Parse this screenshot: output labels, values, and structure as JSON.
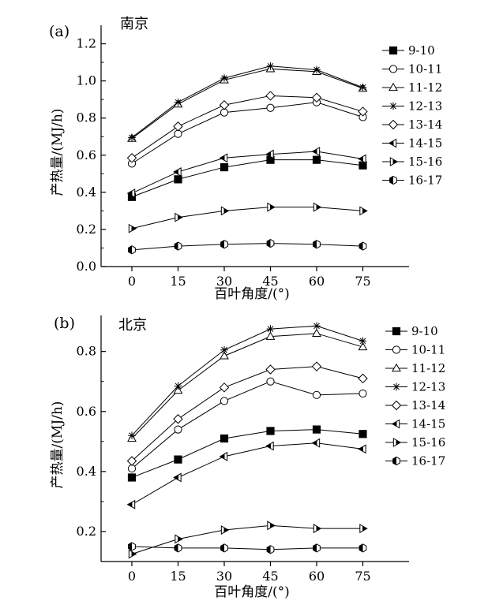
{
  "chart_data": [
    {
      "type": "line",
      "panel_label": "(a)",
      "city": "南京",
      "xlabel": "百叶角度/(°)",
      "ylabel": "产热量/(MJ/h)",
      "x": [
        0,
        15,
        30,
        45,
        60,
        75
      ],
      "x_ticks": [
        "0",
        "15",
        "30",
        "45",
        "60",
        "75"
      ],
      "xlim": [
        -10,
        90
      ],
      "ylim": [
        0,
        1.3
      ],
      "y_ticks": [
        "0.0",
        "0.2",
        "0.4",
        "0.6",
        "0.8",
        "1.0",
        "1.2"
      ],
      "y_tick_values": [
        0,
        0.2,
        0.4,
        0.6,
        0.8,
        1.0,
        1.2
      ],
      "grid": false,
      "legend_position": "right",
      "series": [
        {
          "name": "9-10",
          "marker": "square-filled",
          "values": [
            0.375,
            0.47,
            0.535,
            0.575,
            0.575,
            0.545
          ]
        },
        {
          "name": "10-11",
          "marker": "circle-open",
          "values": [
            0.555,
            0.715,
            0.83,
            0.855,
            0.885,
            0.805
          ]
        },
        {
          "name": "11-12",
          "marker": "triangle-up-open",
          "values": [
            0.69,
            0.875,
            1.005,
            1.065,
            1.05,
            0.96
          ]
        },
        {
          "name": "12-13",
          "marker": "star",
          "values": [
            0.695,
            0.885,
            1.015,
            1.08,
            1.06,
            0.965
          ]
        },
        {
          "name": "13-14",
          "marker": "diamond-open",
          "values": [
            0.585,
            0.755,
            0.87,
            0.92,
            0.91,
            0.835
          ]
        },
        {
          "name": "14-15",
          "marker": "triangle-left-open",
          "values": [
            0.395,
            0.51,
            0.585,
            0.605,
            0.62,
            0.58
          ]
        },
        {
          "name": "15-16",
          "marker": "triangle-right-half",
          "values": [
            0.205,
            0.265,
            0.3,
            0.32,
            0.32,
            0.3
          ]
        },
        {
          "name": "16-17",
          "marker": "hexagon-half",
          "values": [
            0.09,
            0.11,
            0.12,
            0.125,
            0.12,
            0.11
          ]
        }
      ]
    },
    {
      "type": "line",
      "panel_label": "(b)",
      "city": "北京",
      "xlabel": "百叶角度/(°)",
      "ylabel": "产热量/(MJ/h)",
      "x": [
        0,
        15,
        30,
        45,
        60,
        75
      ],
      "x_ticks": [
        "0",
        "15",
        "30",
        "45",
        "60",
        "75"
      ],
      "xlim": [
        -10,
        90
      ],
      "ylim": [
        0.1,
        0.92
      ],
      "y_ticks": [
        "0.2",
        "0.4",
        "0.6",
        "0.8"
      ],
      "y_tick_values": [
        0.2,
        0.4,
        0.6,
        0.8
      ],
      "grid": false,
      "legend_position": "right",
      "series": [
        {
          "name": "9-10",
          "marker": "square-filled",
          "values": [
            0.38,
            0.44,
            0.51,
            0.535,
            0.54,
            0.525
          ]
        },
        {
          "name": "10-11",
          "marker": "circle-open",
          "values": [
            0.41,
            0.54,
            0.635,
            0.7,
            0.655,
            0.66
          ]
        },
        {
          "name": "11-12",
          "marker": "triangle-up-open",
          "values": [
            0.51,
            0.67,
            0.785,
            0.85,
            0.86,
            0.815
          ]
        },
        {
          "name": "12-13",
          "marker": "star",
          "values": [
            0.52,
            0.685,
            0.805,
            0.875,
            0.885,
            0.835
          ]
        },
        {
          "name": "13-14",
          "marker": "diamond-open",
          "values": [
            0.435,
            0.575,
            0.68,
            0.74,
            0.75,
            0.71
          ]
        },
        {
          "name": "14-15",
          "marker": "triangle-left-open",
          "values": [
            0.29,
            0.38,
            0.45,
            0.485,
            0.495,
            0.475
          ]
        },
        {
          "name": "15-16",
          "marker": "triangle-right-half",
          "values": [
            0.125,
            0.175,
            0.205,
            0.22,
            0.21,
            0.21
          ]
        },
        {
          "name": "16-17",
          "marker": "hexagon-half",
          "values": [
            0.15,
            0.145,
            0.145,
            0.14,
            0.145,
            0.145
          ]
        }
      ]
    }
  ]
}
